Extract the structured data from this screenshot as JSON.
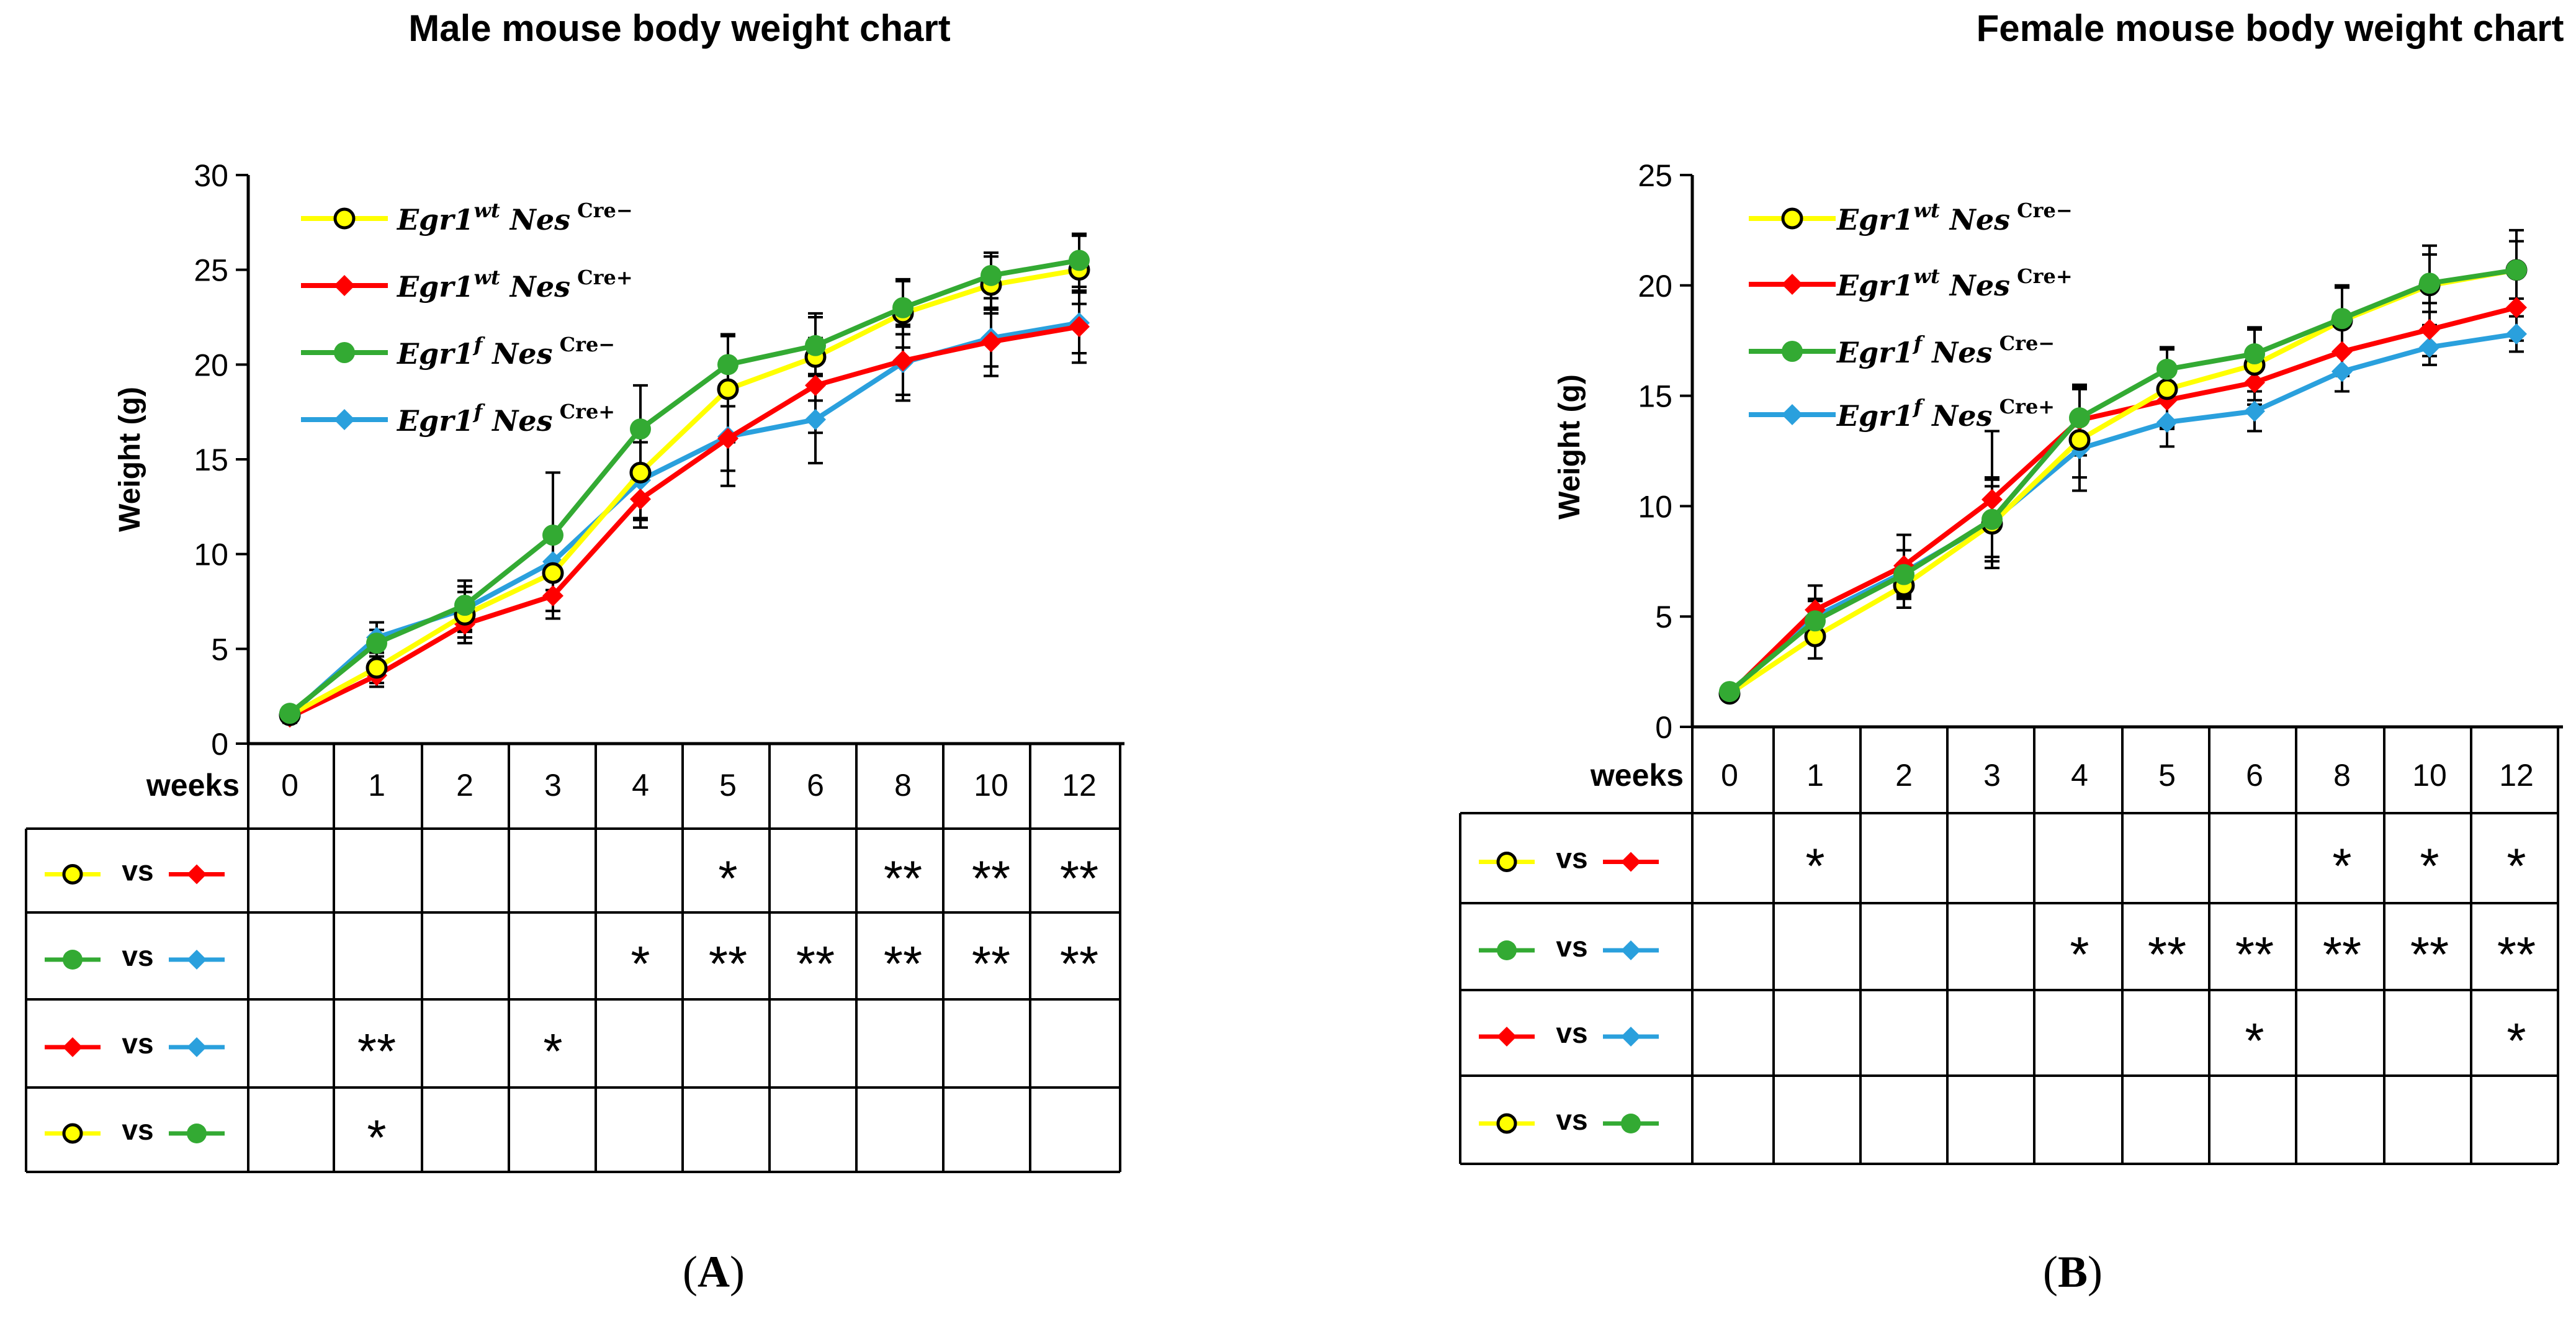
{
  "panel_labels": [
    "A",
    "B"
  ],
  "legend_items": [
    {
      "key": "yc",
      "base": "Egr1",
      "sup1": "wt",
      "mid": "Nes",
      "sup2": "Cre−",
      "color": "#ffff00",
      "marker": "ring"
    },
    {
      "key": "rc",
      "base": "Egr1",
      "sup1": "wt",
      "mid": "Nes",
      "sup2": "Cre+",
      "color": "#ff0000",
      "marker": "diamond"
    },
    {
      "key": "gc",
      "base": "Egr1",
      "sup1": "f",
      "mid": "Nes",
      "sup2": "Cre−",
      "color": "#33aa33",
      "marker": "circle"
    },
    {
      "key": "bc",
      "base": "Egr1",
      "sup1": "f",
      "mid": "Nes",
      "sup2": "Cre+",
      "color": "#2aa0dd",
      "marker": "diamond"
    }
  ],
  "comparison_table": {
    "header_label": "weeks",
    "versus_label": "vs",
    "comparisons": [
      [
        "yc",
        "rc"
      ],
      [
        "gc",
        "bc"
      ],
      [
        "rc",
        "bc"
      ],
      [
        "yc",
        "gc"
      ]
    ]
  },
  "chart_data": [
    {
      "type": "line",
      "title": "Male mouse body weight chart",
      "xlabel": "weeks",
      "ylabel": "Weight (g)",
      "ylim": [
        0,
        30
      ],
      "yticks": [
        0,
        5,
        10,
        15,
        20,
        25,
        30
      ],
      "categories": [
        "0",
        "1",
        "2",
        "3",
        "4",
        "5",
        "6",
        "8",
        "10",
        "12"
      ],
      "series": [
        {
          "key": "yc",
          "name": "Egr1wt NesCre−",
          "values": [
            1.5,
            4.0,
            6.8,
            9.0,
            14.3,
            18.7,
            20.4,
            22.7,
            24.2,
            25.0
          ],
          "errors": [
            0.3,
            0.8,
            1.2,
            2.0,
            2.5,
            2.8,
            2.3,
            1.8,
            1.5,
            1.8
          ]
        },
        {
          "key": "rc",
          "name": "Egr1wt NesCre+",
          "values": [
            1.4,
            3.6,
            6.3,
            7.8,
            12.9,
            16.1,
            18.9,
            20.2,
            21.2,
            22.0
          ],
          "errors": [
            0.3,
            0.6,
            1.0,
            1.2,
            1.5,
            1.7,
            2.5,
            1.8,
            1.8,
            1.9
          ]
        },
        {
          "key": "gc",
          "name": "Egr1f NesCre−",
          "values": [
            1.6,
            5.3,
            7.3,
            11.0,
            16.6,
            20.0,
            21.0,
            23.0,
            24.7,
            25.5
          ],
          "errors": [
            0.3,
            0.7,
            1.3,
            3.3,
            2.3,
            1.6,
            1.5,
            1.4,
            1.2,
            1.4
          ]
        },
        {
          "key": "bc",
          "name": "Egr1f NesCre+",
          "values": [
            1.5,
            5.6,
            7.1,
            9.6,
            13.9,
            16.2,
            17.1,
            20.1,
            21.4,
            22.2
          ],
          "errors": [
            0.3,
            0.8,
            1.2,
            1.5,
            2.0,
            2.6,
            2.3,
            2.0,
            1.5,
            1.6
          ]
        }
      ],
      "significance": [
        [
          "",
          "",
          "",
          "",
          "",
          "*",
          "",
          "**",
          "**",
          "**"
        ],
        [
          "",
          "",
          "",
          "",
          "*",
          "**",
          "**",
          "**",
          "**",
          "**"
        ],
        [
          "",
          "**",
          "",
          "*",
          "",
          "",
          "",
          "",
          "",
          ""
        ],
        [
          "",
          "*",
          "",
          "",
          "",
          "",
          "",
          "",
          "",
          ""
        ]
      ]
    },
    {
      "type": "line",
      "title": "Female mouse body weight chart",
      "xlabel": "weeks",
      "ylabel": "Weight (g)",
      "ylim": [
        0,
        25
      ],
      "yticks": [
        0,
        5,
        10,
        15,
        20,
        25
      ],
      "categories": [
        "0",
        "1",
        "2",
        "3",
        "4",
        "5",
        "6",
        "8",
        "10",
        "12"
      ],
      "series": [
        {
          "key": "yc",
          "name": "Egr1wt NesCre−",
          "values": [
            1.5,
            4.1,
            6.4,
            9.2,
            13.0,
            15.3,
            16.4,
            18.4,
            20.0,
            20.7
          ],
          "errors": [
            0.2,
            1.0,
            1.0,
            2.0,
            2.3,
            1.8,
            1.6,
            1.5,
            1.8,
            1.8
          ]
        },
        {
          "key": "rc",
          "name": "Egr1wt NesCre+",
          "values": [
            1.5,
            5.3,
            7.3,
            10.3,
            13.9,
            14.8,
            15.6,
            17.0,
            18.0,
            19.0
          ],
          "errors": [
            0.2,
            1.1,
            1.4,
            3.1,
            1.6,
            1.2,
            1.0,
            1.1,
            1.2,
            1.5
          ]
        },
        {
          "key": "gc",
          "name": "Egr1f NesCre−",
          "values": [
            1.6,
            4.8,
            6.9,
            9.4,
            14.0,
            16.2,
            16.9,
            18.5,
            20.1,
            20.7
          ],
          "errors": [
            0.2,
            0.9,
            1.1,
            1.9,
            1.4,
            1.0,
            1.2,
            1.5,
            1.3,
            1.3
          ]
        },
        {
          "key": "bc",
          "name": "Egr1f NesCre+",
          "values": [
            1.5,
            5.0,
            7.0,
            9.3,
            12.6,
            13.8,
            14.3,
            16.1,
            17.2,
            17.8
          ],
          "errors": [
            0.2,
            0.8,
            1.0,
            1.6,
            1.3,
            1.1,
            0.9,
            0.9,
            0.8,
            0.8
          ]
        }
      ],
      "significance": [
        [
          "",
          "*",
          "",
          "",
          "",
          "",
          "",
          "*",
          "*",
          "*"
        ],
        [
          "",
          "",
          "",
          "",
          "*",
          "**",
          "**",
          "**",
          "**",
          "**"
        ],
        [
          "",
          "",
          "",
          "",
          "",
          "",
          "*",
          "",
          "",
          "*"
        ],
        [
          "",
          "",
          "",
          "",
          "",
          "",
          "",
          "",
          "",
          ""
        ]
      ]
    }
  ]
}
